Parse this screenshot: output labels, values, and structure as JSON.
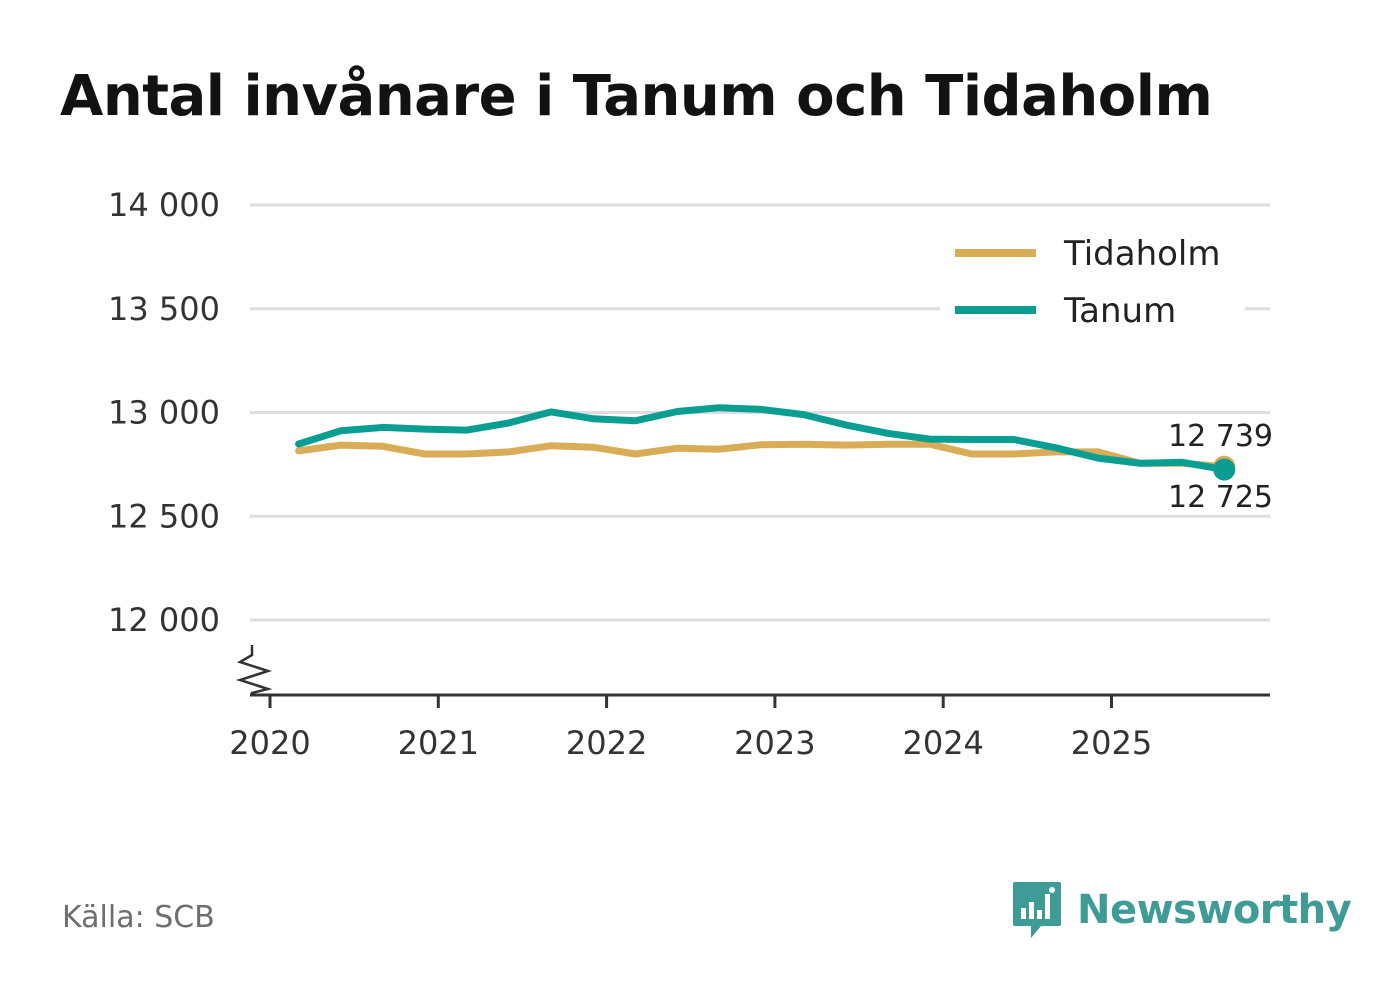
{
  "chart_data": {
    "type": "line",
    "title": "Antal invånare i Tanum och Tidaholm",
    "xlabel": "",
    "ylabel": "",
    "x": [
      2020.17,
      2020.42,
      2020.67,
      2020.92,
      2021.17,
      2021.42,
      2021.67,
      2021.92,
      2022.17,
      2022.42,
      2022.67,
      2022.92,
      2023.17,
      2023.42,
      2023.67,
      2023.92,
      2024.17,
      2024.42,
      2024.67,
      2024.92,
      2025.17,
      2025.42,
      2025.67
    ],
    "x_ticks": [
      "2020",
      "2021",
      "2022",
      "2023",
      "2024",
      "2025"
    ],
    "y_ticks": [
      "14 000",
      "13 500",
      "13 000",
      "12 500",
      "12 000"
    ],
    "ylim": [
      11630,
      14000
    ],
    "axis_break": true,
    "grid": true,
    "legend_position": "top-right",
    "series": [
      {
        "name": "Tidaholm",
        "color": "#d9ac58",
        "values": [
          12815,
          12843,
          12837,
          12800,
          12800,
          12810,
          12840,
          12833,
          12800,
          12828,
          12823,
          12845,
          12847,
          12843,
          12847,
          12847,
          12800,
          12800,
          12810,
          12810,
          12755,
          12755,
          12739
        ],
        "end_label": "12 739"
      },
      {
        "name": "Tanum",
        "color": "#0a9e93",
        "values": [
          12848,
          12912,
          12928,
          12920,
          12915,
          12950,
          13003,
          12970,
          12960,
          13005,
          13023,
          13015,
          12990,
          12940,
          12900,
          12872,
          12870,
          12870,
          12830,
          12780,
          12755,
          12760,
          12725
        ],
        "end_label": "12 725"
      }
    ]
  },
  "footer": {
    "source": "Källa: SCB",
    "brand": "Newsworthy",
    "brand_color": "#3f9b95"
  },
  "colors": {
    "grid": "#dddddd",
    "axis": "#333333",
    "title": "#121212"
  }
}
